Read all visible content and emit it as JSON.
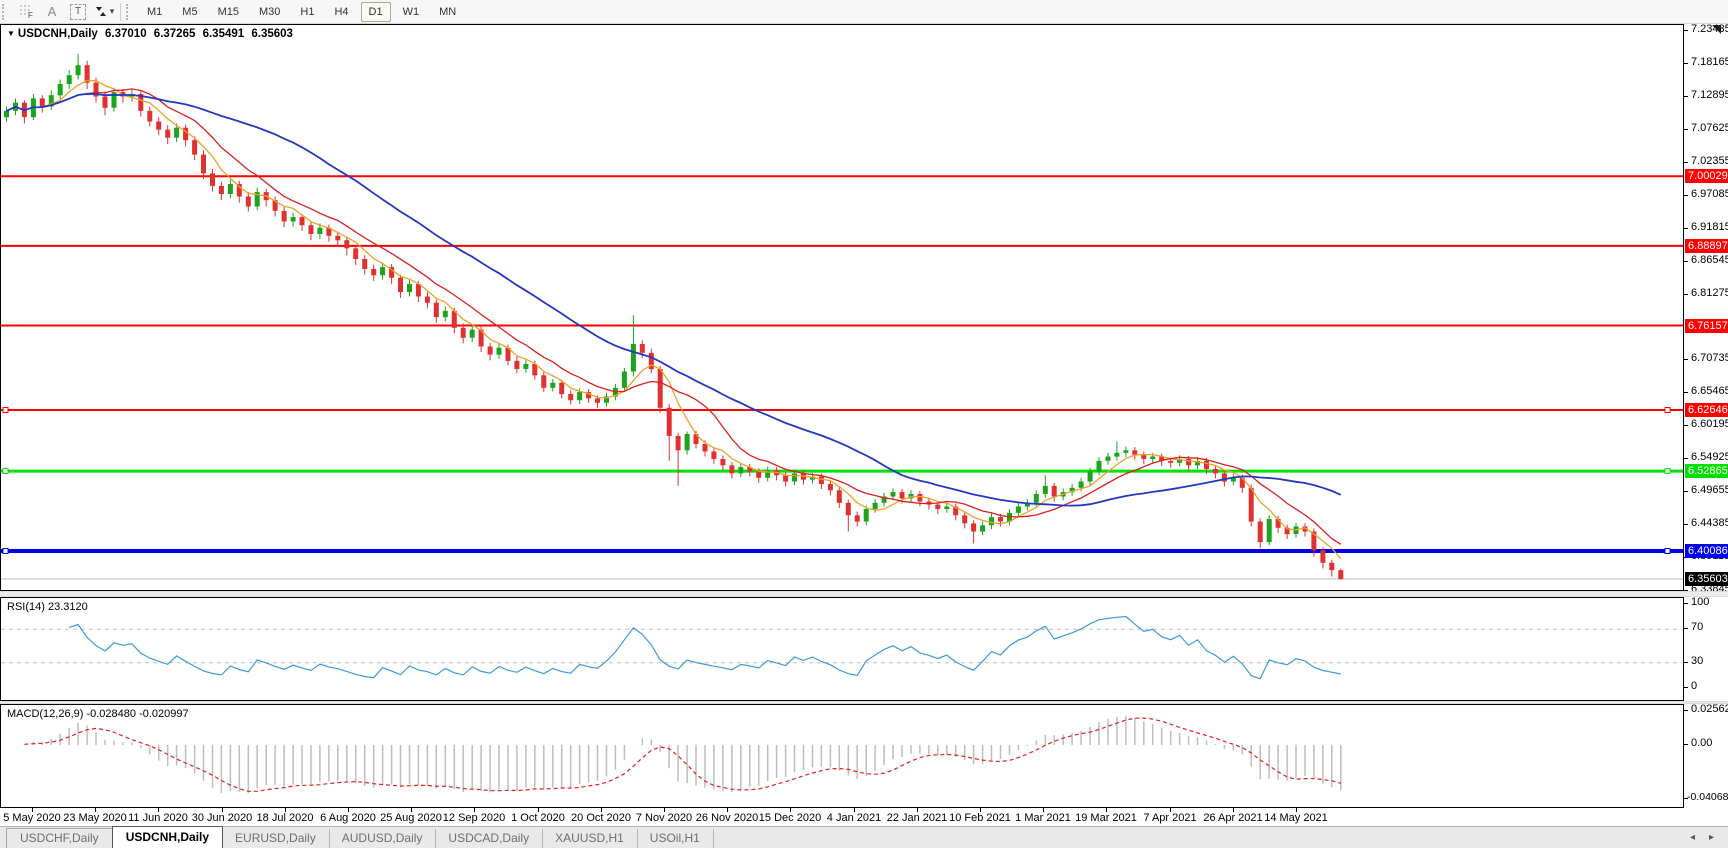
{
  "toolbar": {
    "grid_tool_glyph": "F",
    "text_tool_glyph": "A",
    "label_tool_glyph": "T",
    "caret_glyph": "▾",
    "timeframes": [
      "M1",
      "M5",
      "M15",
      "M30",
      "H1",
      "H4",
      "D1",
      "W1",
      "MN"
    ],
    "active_timeframe": "D1"
  },
  "main_chart": {
    "collapse_glyph": "▼",
    "title": "USDCNH,Daily",
    "ohlc": {
      "open": "6.37010",
      "high": "6.37265",
      "low": "6.35491",
      "close": "6.35603"
    }
  },
  "chart_data": {
    "type": "candlestick",
    "symbol": "USDCNH",
    "period": "Daily",
    "colors": {
      "candle_up": "#1CA51C",
      "candle_down": "#E03030",
      "ma_fast": "#F0A028",
      "ma_mid": "#DB2020",
      "ma_slow": "#2438BE",
      "rsi_line": "#3C9BE0",
      "macd_hist": "#BDBDBD",
      "macd_signal": "#DD2222",
      "level_dash": "#C0C0C0"
    },
    "price_axis": {
      "max_top": 7.24235,
      "min_bottom": 6.33845,
      "ticks": [
        "7.23435",
        "7.18165",
        "7.12895",
        "7.07625",
        "7.02355",
        "6.97085",
        "6.91815",
        "6.86545",
        "6.81275",
        "6.70735",
        "6.65465",
        "6.60195",
        "6.54925",
        "6.49655",
        "6.44385",
        "6.39115",
        "6.33845"
      ]
    },
    "x_dates": [
      "5 May 2020",
      "23 May 2020",
      "11 Jun 2020",
      "30 Jun 2020",
      "18 Jul 2020",
      "6 Aug 2020",
      "25 Aug 2020",
      "12 Sep 2020",
      "1 Oct 2020",
      "20 Oct 2020",
      "7 Nov 2020",
      "26 Nov 2020",
      "15 Dec 2020",
      "4 Jan 2021",
      "22 Jan 2021",
      "10 Feb 2021",
      "1 Mar 2021",
      "19 Mar 2021",
      "7 Apr 2021",
      "26 Apr 2021",
      "14 May 2021"
    ],
    "candles": [
      [
        7.095,
        7.112,
        7.088,
        7.105
      ],
      [
        7.105,
        7.125,
        7.098,
        7.118
      ],
      [
        7.118,
        7.122,
        7.085,
        7.095
      ],
      [
        7.095,
        7.132,
        7.09,
        7.125
      ],
      [
        7.125,
        7.13,
        7.102,
        7.112
      ],
      [
        7.112,
        7.138,
        7.106,
        7.13
      ],
      [
        7.13,
        7.155,
        7.124,
        7.148
      ],
      [
        7.148,
        7.17,
        7.14,
        7.162
      ],
      [
        7.162,
        7.196,
        7.155,
        7.178
      ],
      [
        7.178,
        7.185,
        7.14,
        7.15
      ],
      [
        7.15,
        7.158,
        7.118,
        7.128
      ],
      [
        7.128,
        7.136,
        7.098,
        7.11
      ],
      [
        7.11,
        7.142,
        7.104,
        7.135
      ],
      [
        7.135,
        7.14,
        7.118,
        7.128
      ],
      [
        7.128,
        7.14,
        7.12,
        7.132
      ],
      [
        7.132,
        7.136,
        7.096,
        7.105
      ],
      [
        7.105,
        7.112,
        7.08,
        7.088
      ],
      [
        7.088,
        7.095,
        7.066,
        7.075
      ],
      [
        7.075,
        7.082,
        7.052,
        7.062
      ],
      [
        7.062,
        7.085,
        7.055,
        7.078
      ],
      [
        7.078,
        7.083,
        7.048,
        7.058
      ],
      [
        7.058,
        7.064,
        7.026,
        7.035
      ],
      [
        7.035,
        7.042,
        6.996,
        7.005
      ],
      [
        7.005,
        7.012,
        6.976,
        6.985
      ],
      [
        6.985,
        6.992,
        6.962,
        6.972
      ],
      [
        6.972,
        6.995,
        6.965,
        6.988
      ],
      [
        6.988,
        6.993,
        6.958,
        6.968
      ],
      [
        6.968,
        6.975,
        6.944,
        6.952
      ],
      [
        6.952,
        6.982,
        6.946,
        6.975
      ],
      [
        6.975,
        6.98,
        6.952,
        6.962
      ],
      [
        6.962,
        6.968,
        6.936,
        6.945
      ],
      [
        6.945,
        6.951,
        6.919,
        6.928
      ],
      [
        6.928,
        6.942,
        6.92,
        6.935
      ],
      [
        6.935,
        6.94,
        6.913,
        6.922
      ],
      [
        6.922,
        6.928,
        6.898,
        6.908
      ],
      [
        6.908,
        6.925,
        6.9,
        6.918
      ],
      [
        6.918,
        6.923,
        6.896,
        6.905
      ],
      [
        6.905,
        6.912,
        6.889,
        6.898
      ],
      [
        6.898,
        6.903,
        6.874,
        6.885
      ],
      [
        6.885,
        6.89,
        6.858,
        6.868
      ],
      [
        6.868,
        6.874,
        6.843,
        6.852
      ],
      [
        6.852,
        6.859,
        6.833,
        6.842
      ],
      [
        6.842,
        6.862,
        6.835,
        6.855
      ],
      [
        6.855,
        6.86,
        6.828,
        6.838
      ],
      [
        6.838,
        6.843,
        6.806,
        6.815
      ],
      [
        6.815,
        6.835,
        6.808,
        6.828
      ],
      [
        6.828,
        6.833,
        6.799,
        6.808
      ],
      [
        6.808,
        6.815,
        6.789,
        6.798
      ],
      [
        6.798,
        6.803,
        6.766,
        6.775
      ],
      [
        6.775,
        6.792,
        6.768,
        6.785
      ],
      [
        6.785,
        6.79,
        6.749,
        6.758
      ],
      [
        6.758,
        6.765,
        6.733,
        6.742
      ],
      [
        6.742,
        6.762,
        6.735,
        6.755
      ],
      [
        6.755,
        6.76,
        6.719,
        6.728
      ],
      [
        6.728,
        6.734,
        6.706,
        6.715
      ],
      [
        6.715,
        6.732,
        6.708,
        6.726
      ],
      [
        6.726,
        6.731,
        6.698,
        6.705
      ],
      [
        6.705,
        6.712,
        6.685,
        6.692
      ],
      [
        6.692,
        6.706,
        6.686,
        6.7
      ],
      [
        6.7,
        6.705,
        6.675,
        6.682
      ],
      [
        6.682,
        6.688,
        6.655,
        6.662
      ],
      [
        6.662,
        6.676,
        6.656,
        6.67
      ],
      [
        6.67,
        6.675,
        6.645,
        6.652
      ],
      [
        6.652,
        6.658,
        6.635,
        6.642
      ],
      [
        6.642,
        6.661,
        6.636,
        6.655
      ],
      [
        6.655,
        6.66,
        6.638,
        6.645
      ],
      [
        6.645,
        6.65,
        6.63,
        6.638
      ],
      [
        6.638,
        6.654,
        6.632,
        6.648
      ],
      [
        6.648,
        6.668,
        6.642,
        6.662
      ],
      [
        6.662,
        6.694,
        6.656,
        6.688
      ],
      [
        6.688,
        6.778,
        6.68,
        6.732
      ],
      [
        6.732,
        6.738,
        6.71,
        6.718
      ],
      [
        6.718,
        6.724,
        6.685,
        6.692
      ],
      [
        6.692,
        6.697,
        6.622,
        6.63
      ],
      [
        6.63,
        6.636,
        6.545,
        6.585
      ],
      [
        6.585,
        6.59,
        6.505,
        6.562
      ],
      [
        6.562,
        6.592,
        6.555,
        6.588
      ],
      [
        6.588,
        6.593,
        6.565,
        6.572
      ],
      [
        6.572,
        6.578,
        6.552,
        6.56
      ],
      [
        6.56,
        6.565,
        6.54,
        6.548
      ],
      [
        6.548,
        6.554,
        6.53,
        6.538
      ],
      [
        6.538,
        6.543,
        6.517,
        6.525
      ],
      [
        6.525,
        6.541,
        6.519,
        6.535
      ],
      [
        6.535,
        6.54,
        6.52,
        6.528
      ],
      [
        6.528,
        6.533,
        6.51,
        6.518
      ],
      [
        6.518,
        6.536,
        6.512,
        6.53
      ],
      [
        6.53,
        6.535,
        6.514,
        6.522
      ],
      [
        6.522,
        6.527,
        6.504,
        6.512
      ],
      [
        6.512,
        6.531,
        6.506,
        6.525
      ],
      [
        6.525,
        6.53,
        6.507,
        6.515
      ],
      [
        6.515,
        6.526,
        6.509,
        6.52
      ],
      [
        6.52,
        6.525,
        6.5,
        6.508
      ],
      [
        6.508,
        6.513,
        6.49,
        6.498
      ],
      [
        6.498,
        6.503,
        6.47,
        6.478
      ],
      [
        6.478,
        6.483,
        6.432,
        6.458
      ],
      [
        6.458,
        6.464,
        6.44,
        6.448
      ],
      [
        6.448,
        6.474,
        6.442,
        6.468
      ],
      [
        6.468,
        6.484,
        6.462,
        6.478
      ],
      [
        6.478,
        6.494,
        6.472,
        6.488
      ],
      [
        6.488,
        6.501,
        6.482,
        6.495
      ],
      [
        6.495,
        6.5,
        6.477,
        6.485
      ],
      [
        6.485,
        6.498,
        6.479,
        6.492
      ],
      [
        6.492,
        6.497,
        6.472,
        6.48
      ],
      [
        6.48,
        6.486,
        6.467,
        6.475
      ],
      [
        6.475,
        6.48,
        6.46,
        6.468
      ],
      [
        6.468,
        6.478,
        6.462,
        6.472
      ],
      [
        6.472,
        6.477,
        6.45,
        6.458
      ],
      [
        6.458,
        6.463,
        6.437,
        6.445
      ],
      [
        6.445,
        6.45,
        6.413,
        6.432
      ],
      [
        6.432,
        6.448,
        6.426,
        6.442
      ],
      [
        6.442,
        6.461,
        6.436,
        6.455
      ],
      [
        6.455,
        6.46,
        6.44,
        6.448
      ],
      [
        6.448,
        6.468,
        6.442,
        6.462
      ],
      [
        6.462,
        6.478,
        6.456,
        6.472
      ],
      [
        6.472,
        6.484,
        6.466,
        6.478
      ],
      [
        6.478,
        6.498,
        6.472,
        6.492
      ],
      [
        6.492,
        6.522,
        6.486,
        6.505
      ],
      [
        6.505,
        6.51,
        6.48,
        6.488
      ],
      [
        6.488,
        6.501,
        6.482,
        6.495
      ],
      [
        6.495,
        6.508,
        6.489,
        6.502
      ],
      [
        6.502,
        6.518,
        6.496,
        6.512
      ],
      [
        6.512,
        6.534,
        6.506,
        6.528
      ],
      [
        6.528,
        6.551,
        6.522,
        6.545
      ],
      [
        6.545,
        6.558,
        6.539,
        6.552
      ],
      [
        6.552,
        6.576,
        6.546,
        6.558
      ],
      [
        6.558,
        6.568,
        6.551,
        6.562
      ],
      [
        6.562,
        6.567,
        6.547,
        6.555
      ],
      [
        6.555,
        6.56,
        6.54,
        6.548
      ],
      [
        6.548,
        6.558,
        6.541,
        6.552
      ],
      [
        6.552,
        6.557,
        6.537,
        6.545
      ],
      [
        6.545,
        6.55,
        6.534,
        6.542
      ],
      [
        6.542,
        6.554,
        6.536,
        6.548
      ],
      [
        6.548,
        6.553,
        6.53,
        6.538
      ],
      [
        6.538,
        6.551,
        6.532,
        6.545
      ],
      [
        6.545,
        6.55,
        6.524,
        6.532
      ],
      [
        6.532,
        6.537,
        6.517,
        6.525
      ],
      [
        6.525,
        6.53,
        6.504,
        6.512
      ],
      [
        6.512,
        6.524,
        6.506,
        6.518
      ],
      [
        6.518,
        6.523,
        6.494,
        6.502
      ],
      [
        6.502,
        6.507,
        6.44,
        6.448
      ],
      [
        6.448,
        6.453,
        6.405,
        6.415
      ],
      [
        6.415,
        6.458,
        6.41,
        6.452
      ],
      [
        6.452,
        6.457,
        6.43,
        6.438
      ],
      [
        6.438,
        6.443,
        6.42,
        6.428
      ],
      [
        6.428,
        6.446,
        6.422,
        6.44
      ],
      [
        6.44,
        6.445,
        6.424,
        6.432
      ],
      [
        6.432,
        6.437,
        6.392,
        6.402
      ],
      [
        6.402,
        6.407,
        6.373,
        6.382
      ],
      [
        6.382,
        6.387,
        6.36,
        6.3701
      ],
      [
        6.3701,
        6.37265,
        6.35491,
        6.35603
      ]
    ],
    "moving_averages": [
      {
        "name": "ma-fast",
        "period_bars": 5
      },
      {
        "name": "ma-mid",
        "period_bars": 10
      },
      {
        "name": "ma-slow",
        "period_bars": 28
      }
    ],
    "hlines": [
      {
        "price": 7.00029,
        "label": "7.00029",
        "color": "#FF0000",
        "thickness": 2,
        "selected": false
      },
      {
        "price": 6.88897,
        "label": "6.88897",
        "color": "#FF0000",
        "thickness": 2,
        "selected": false
      },
      {
        "price": 6.76157,
        "label": "6.76157",
        "color": "#FF0000",
        "thickness": 2,
        "selected": false
      },
      {
        "price": 6.62646,
        "label": "6.62646",
        "color": "#FF0000",
        "thickness": 2,
        "selected": true
      },
      {
        "price": 6.52865,
        "label": "6.52865",
        "color": "#00E000",
        "thickness": 3,
        "selected": true
      },
      {
        "price": 6.40086,
        "label": "6.40086",
        "color": "#0000F0",
        "thickness": 4,
        "selected": true
      }
    ],
    "last_price": {
      "value": 6.35603,
      "label": "6.35603",
      "line_color": "#B8B8B8",
      "badge_bg": "#000000"
    },
    "indicators": {
      "rsi": {
        "label": "RSI(14) 23.3120",
        "period_bars": 7,
        "levels": [
          70,
          30
        ],
        "scale_ticks": [
          {
            "v": 100,
            "t": "100"
          },
          {
            "v": 70,
            "t": "70"
          },
          {
            "v": 30,
            "t": "30"
          },
          {
            "v": 0,
            "t": "0"
          }
        ]
      },
      "macd": {
        "label": "MACD(12,26,9) -0.028480 -0.020997",
        "fast_bars": 6,
        "slow_bars": 13,
        "signal_bars": 5,
        "scale_ticks": [
          {
            "v": 0.025623,
            "t": "0.025623"
          },
          {
            "v": 0,
            "t": "0.00"
          },
          {
            "v": -0.040687,
            "t": "-0.040687"
          }
        ]
      }
    }
  },
  "tab_bar": {
    "tabs": [
      {
        "label": "USDCHF,Daily",
        "active": false
      },
      {
        "label": "USDCNH,Daily",
        "active": true
      },
      {
        "label": "EURUSD,Daily",
        "active": false
      },
      {
        "label": "AUDUSD,Daily",
        "active": false
      },
      {
        "label": "USDCAD,Daily",
        "active": false
      },
      {
        "label": "XAUUSD,H1",
        "active": false
      },
      {
        "label": "USOil,H1",
        "active": false
      }
    ],
    "scroll_left": "◂",
    "scroll_right": "▸"
  }
}
